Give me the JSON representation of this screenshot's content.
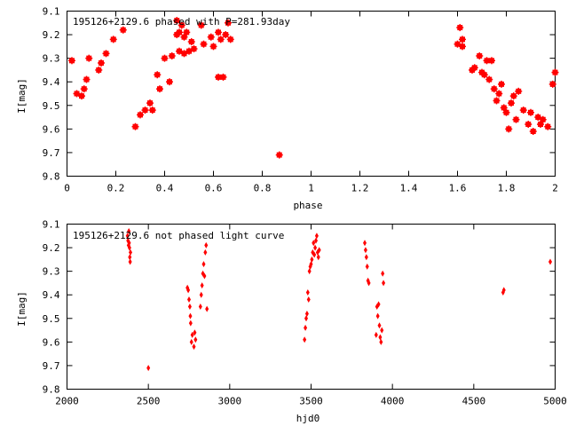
{
  "chart_data": [
    {
      "type": "scatter",
      "title": "195126+2129.6 phased with P=281.93day",
      "xlabel": "phase",
      "ylabel": "I[mag]",
      "xlim": [
        0,
        2
      ],
      "ylim": [
        9.8,
        9.1
      ],
      "y_inverted": true,
      "x_ticks": [
        "0",
        "0.2",
        "0.4",
        "0.6",
        "0.8",
        "1",
        "1.2",
        "1.4",
        "1.6",
        "1.8",
        "2"
      ],
      "y_ticks": [
        "9.1",
        "9.2",
        "9.3",
        "9.4",
        "9.5",
        "9.6",
        "9.7",
        "9.8"
      ],
      "grid": false,
      "marker_color": "#ff0000",
      "marker": "star",
      "series": [
        {
          "x": [
            0.02,
            0.04,
            0.06,
            0.07,
            0.08,
            0.09,
            0.13,
            0.14,
            0.16,
            0.19,
            0.23,
            0.28,
            0.3,
            0.32,
            0.34,
            0.35,
            0.37,
            0.38,
            0.4,
            0.42,
            0.43,
            0.45,
            0.45,
            0.46,
            0.46,
            0.47,
            0.48,
            0.48,
            0.49,
            0.5,
            0.51,
            0.52,
            0.55,
            0.56,
            0.59,
            0.6,
            0.62,
            0.62,
            0.63,
            0.64,
            0.65,
            0.66,
            0.67,
            0.87,
            1.6,
            1.61,
            1.62,
            1.62,
            1.66,
            1.67,
            1.69,
            1.7,
            1.71,
            1.72,
            1.73,
            1.74,
            1.75,
            1.76,
            1.77,
            1.78,
            1.79,
            1.8,
            1.81,
            1.82,
            1.83,
            1.84,
            1.85,
            1.87,
            1.89,
            1.9,
            1.91,
            1.93,
            1.94,
            1.95,
            1.97,
            1.99,
            2.0
          ],
          "y": [
            9.31,
            9.45,
            9.46,
            9.43,
            9.39,
            9.3,
            9.35,
            9.32,
            9.28,
            9.22,
            9.18,
            9.59,
            9.54,
            9.52,
            9.49,
            9.52,
            9.37,
            9.43,
            9.3,
            9.4,
            9.29,
            9.2,
            9.14,
            9.19,
            9.27,
            9.16,
            9.28,
            9.21,
            9.19,
            9.27,
            9.23,
            9.26,
            9.16,
            9.24,
            9.21,
            9.25,
            9.19,
            9.38,
            9.22,
            9.38,
            9.2,
            9.15,
            9.22,
            9.71,
            9.24,
            9.17,
            9.22,
            9.25,
            9.35,
            9.34,
            9.29,
            9.36,
            9.37,
            9.31,
            9.39,
            9.31,
            9.43,
            9.48,
            9.45,
            9.41,
            9.51,
            9.53,
            9.6,
            9.49,
            9.46,
            9.56,
            9.44,
            9.52,
            9.58,
            9.53,
            9.61,
            9.55,
            9.58,
            9.56,
            9.59,
            9.41,
            9.36
          ]
        }
      ]
    },
    {
      "type": "scatter",
      "title": "195126+2129.6 not phased light curve",
      "xlabel": "hjd0",
      "ylabel": "I[mag]",
      "xlim": [
        2000,
        5000
      ],
      "ylim": [
        9.8,
        9.1
      ],
      "y_inverted": true,
      "x_ticks": [
        "2000",
        "2500",
        "3000",
        "3500",
        "4000",
        "4500",
        "5000"
      ],
      "y_ticks": [
        "9.1",
        "9.2",
        "9.3",
        "9.4",
        "9.5",
        "9.6",
        "9.7",
        "9.8"
      ],
      "grid": false,
      "marker_color": "#ff0000",
      "marker": "diamond",
      "series": [
        {
          "x": [
            2372,
            2375,
            2378,
            2380,
            2382,
            2384,
            2386,
            2388,
            2390,
            2500,
            2740,
            2745,
            2750,
            2755,
            2758,
            2760,
            2765,
            2770,
            2780,
            2785,
            2790,
            2820,
            2825,
            2830,
            2835,
            2840,
            2845,
            2850,
            2855,
            2860,
            3460,
            3465,
            3470,
            3475,
            3480,
            3485,
            3490,
            3495,
            3500,
            3505,
            3510,
            3515,
            3520,
            3525,
            3530,
            3535,
            3540,
            3545,
            3550,
            3830,
            3835,
            3840,
            3845,
            3850,
            3855,
            3900,
            3905,
            3910,
            3915,
            3920,
            3925,
            3930,
            3935,
            3940,
            3945,
            4680,
            4685,
            4970
          ],
          "y": [
            9.15,
            9.17,
            9.19,
            9.13,
            9.18,
            9.2,
            9.24,
            9.26,
            9.22,
            9.71,
            9.37,
            9.38,
            9.42,
            9.45,
            9.49,
            9.52,
            9.6,
            9.57,
            9.62,
            9.56,
            9.59,
            9.45,
            9.4,
            9.36,
            9.31,
            9.27,
            9.32,
            9.22,
            9.19,
            9.46,
            9.59,
            9.54,
            9.5,
            9.48,
            9.39,
            9.42,
            9.3,
            9.28,
            9.27,
            9.25,
            9.22,
            9.18,
            9.23,
            9.2,
            9.17,
            9.15,
            9.22,
            9.24,
            9.21,
            9.18,
            9.21,
            9.24,
            9.28,
            9.34,
            9.35,
            9.57,
            9.45,
            9.49,
            9.44,
            9.53,
            9.58,
            9.6,
            9.55,
            9.31,
            9.35,
            9.39,
            9.38,
            9.26
          ]
        }
      ]
    }
  ]
}
